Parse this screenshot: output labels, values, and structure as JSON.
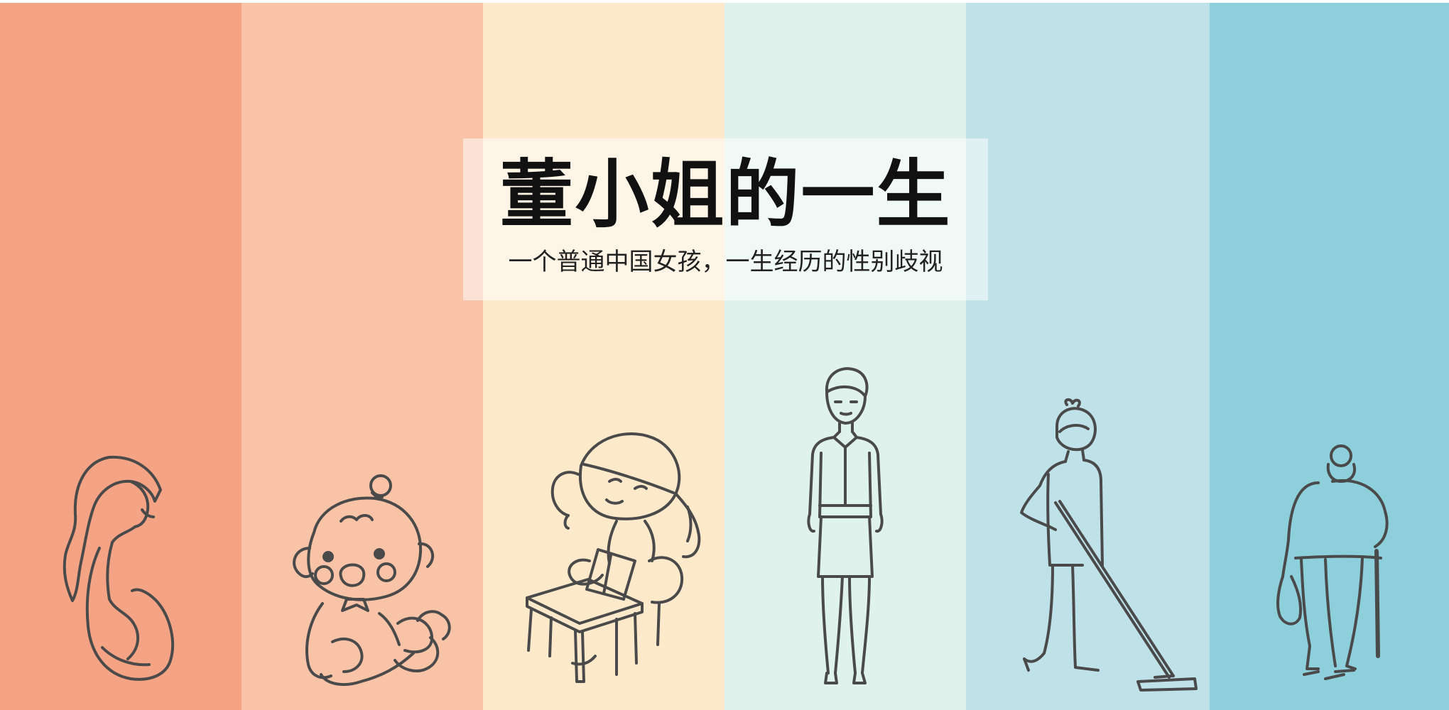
{
  "poster": {
    "title": "董小姐的一生",
    "subtitle": "一个普通中国女孩，一生经历的性别歧视"
  },
  "colors": {
    "band_1": "#F4A384",
    "band_2": "#F9C3A8",
    "band_3": "#FEEACB",
    "band_4": "#E0F2EC",
    "band_5": "#BFE1E8",
    "band_6": "#8ECFDC",
    "line": "#4A4A4A"
  },
  "figures": [
    {
      "name": "pregnant-woman-icon"
    },
    {
      "name": "baby-icon"
    },
    {
      "name": "schoolgirl-icon"
    },
    {
      "name": "office-woman-icon"
    },
    {
      "name": "woman-with-mop-icon"
    },
    {
      "name": "elderly-woman-icon"
    }
  ]
}
